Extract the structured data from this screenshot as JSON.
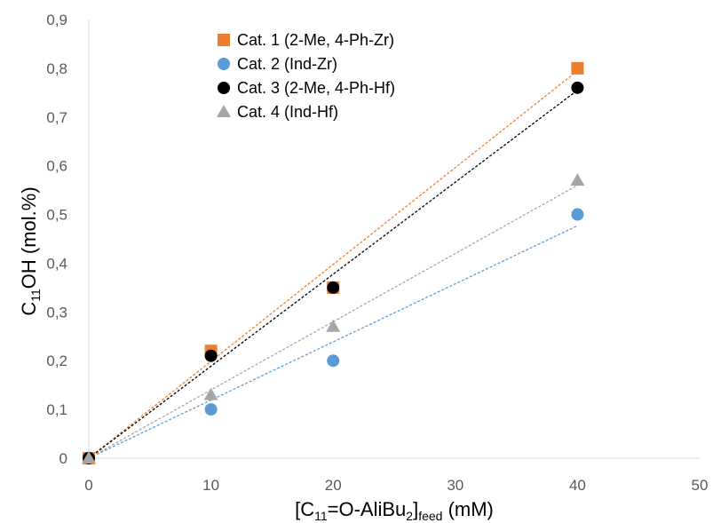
{
  "chart_data": {
    "type": "scatter",
    "xlabel": {
      "main": "[C",
      "sub1": "11",
      "sup1": "=O-AliBu",
      "sub2": "2",
      "after": "]",
      "sub3": "feed",
      "unit": " (mM)"
    },
    "ylabel": {
      "main": "C",
      "sub": "11",
      "after": "OH (mol.%)"
    },
    "xlim": [
      0,
      50
    ],
    "ylim": [
      0,
      0.9
    ],
    "x_ticks": [
      0,
      10,
      20,
      30,
      40,
      50
    ],
    "x_tick_labels": [
      "0",
      "10",
      "20",
      "30",
      "40",
      "50"
    ],
    "y_ticks": [
      0,
      0.1,
      0.2,
      0.3,
      0.4,
      0.5,
      0.6,
      0.7,
      0.8,
      0.9
    ],
    "y_tick_labels": [
      "0",
      "0,1",
      "0,2",
      "0,3",
      "0,4",
      "0,5",
      "0,6",
      "0,7",
      "0,8",
      "0,9"
    ],
    "grid": false,
    "legend_position": "top-left",
    "series": [
      {
        "name": "Cat. 1 (2-Me, 4-Ph-Zr)",
        "marker": "square",
        "color": "#ED7D31",
        "x": [
          0,
          10,
          20,
          40
        ],
        "y": [
          0,
          0.22,
          0.35,
          0.8
        ],
        "trendline": [
          0,
          0,
          40,
          0.795
        ]
      },
      {
        "name": "Cat. 2 (Ind-Zr)",
        "marker": "circle",
        "color": "#5B9BD5",
        "x": [
          0,
          10,
          20,
          40
        ],
        "y": [
          0,
          0.1,
          0.2,
          0.5
        ],
        "trendline": [
          0,
          0,
          40,
          0.477
        ]
      },
      {
        "name": "Cat. 3 (2-Me, 4-Ph-Hf)",
        "marker": "circle",
        "color": "#000000",
        "x": [
          0,
          10,
          20,
          40
        ],
        "y": [
          0,
          0.21,
          0.35,
          0.76
        ],
        "trendline": [
          0,
          0,
          40,
          0.755
        ]
      },
      {
        "name": "Cat. 4 (Ind-Hf)",
        "marker": "triangle",
        "color": "#A5A5A5",
        "x": [
          0,
          10,
          20,
          40
        ],
        "y": [
          0,
          0.13,
          0.27,
          0.57
        ],
        "trendline": [
          0,
          0,
          40,
          0.56
        ]
      }
    ]
  }
}
